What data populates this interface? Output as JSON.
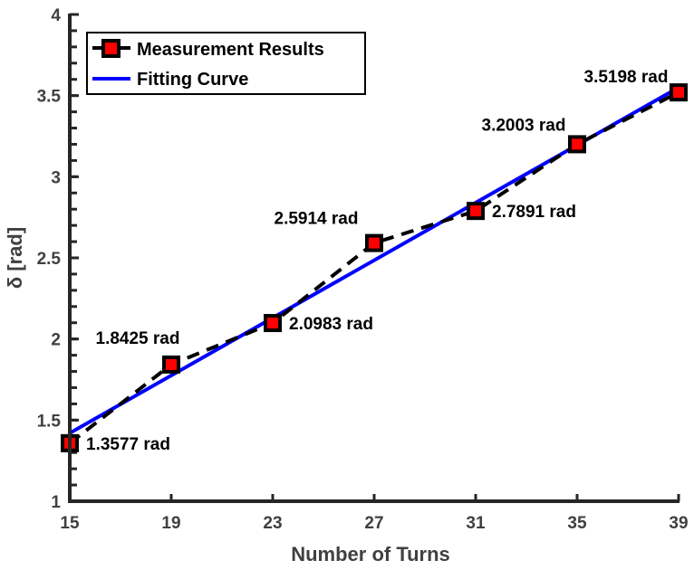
{
  "chart_data": {
    "type": "line",
    "title": "",
    "xlabel": "Number of Turns",
    "ylabel": "δ [rad]",
    "xlim": [
      15,
      39
    ],
    "ylim": [
      1,
      4
    ],
    "x_ticks": [
      15,
      19,
      23,
      27,
      31,
      35,
      39
    ],
    "y_ticks": [
      1,
      1.5,
      2,
      2.5,
      3,
      3.5,
      4
    ],
    "y_tick_labels": [
      "1",
      "1.5",
      "2",
      "2.5",
      "3",
      "3.5",
      "4"
    ],
    "y_minor_step": 0.1,
    "grid": false,
    "legend_position": "upper left",
    "series": [
      {
        "name": "Measurement Results",
        "style": "dashed black line with red square markers",
        "x": [
          15,
          19,
          23,
          27,
          31,
          35,
          39
        ],
        "values": [
          1.3577,
          1.8425,
          2.0983,
          2.5914,
          2.7891,
          3.2003,
          3.5198
        ]
      },
      {
        "name": "Fitting Curve",
        "style": "solid blue line",
        "x": [
          15,
          39
        ],
        "values": [
          1.42,
          3.55
        ]
      }
    ],
    "annotations": [
      {
        "text": "1.3577 rad",
        "x": 15,
        "y": 1.3577,
        "position": "right"
      },
      {
        "text": "1.8425 rad",
        "x": 19,
        "y": 1.8425,
        "position": "above-left"
      },
      {
        "text": "2.0983 rad",
        "x": 23,
        "y": 2.0983,
        "position": "right"
      },
      {
        "text": "2.5914 rad",
        "x": 27,
        "y": 2.5914,
        "position": "above-left"
      },
      {
        "text": "2.7891 rad",
        "x": 31,
        "y": 2.7891,
        "position": "right"
      },
      {
        "text": "3.2003 rad",
        "x": 35,
        "y": 3.2003,
        "position": "above-left"
      },
      {
        "text": "3.5198 rad",
        "x": 39,
        "y": 3.5198,
        "position": "above-left"
      }
    ],
    "colors": {
      "measurement_line": "#000000",
      "marker_fill": "#ff0000",
      "marker_edge": "#000000",
      "fit_line": "#0000ff",
      "axis": "#262626",
      "tick_text": "#404040"
    }
  },
  "legend": {
    "items": [
      {
        "label": "Measurement Results"
      },
      {
        "label": "Fitting Curve"
      }
    ]
  }
}
